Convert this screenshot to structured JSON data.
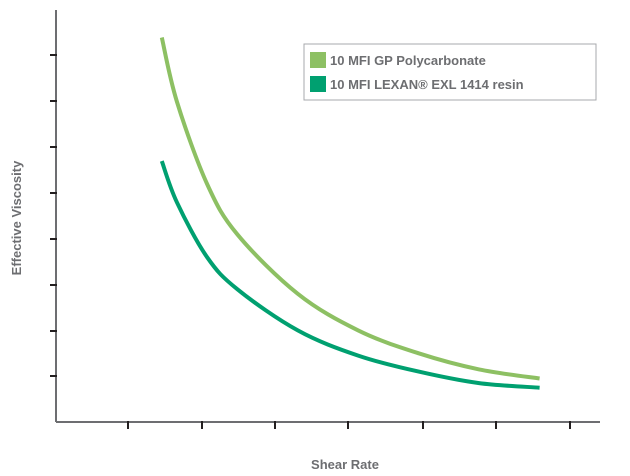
{
  "chart_data": {
    "type": "line",
    "title": "",
    "xlabel": "Shear Rate",
    "ylabel": "Effective Viscosity",
    "x_tick_labels": [],
    "y_tick_labels": [],
    "grid": false,
    "legend_position": "top-right",
    "series": [
      {
        "name": "10 MFI GP Polycarbonate",
        "color": "#8dc063",
        "x": [
          1.75,
          2.0,
          2.5,
          3.0,
          4.0,
          5.0,
          6.0,
          7.0,
          8.0
        ],
        "y": [
          8.4,
          7.0,
          5.2,
          4.1,
          2.8,
          2.0,
          1.5,
          1.15,
          0.95
        ]
      },
      {
        "name": "10 MFI LEXAN® EXL 1414 resin",
        "color": "#00a070",
        "x": [
          1.75,
          2.0,
          2.5,
          3.0,
          4.0,
          5.0,
          6.0,
          7.0,
          8.0
        ],
        "y": [
          5.7,
          4.8,
          3.6,
          2.9,
          2.0,
          1.45,
          1.1,
          0.85,
          0.75
        ]
      }
    ],
    "xlim": [
      0,
      9
    ],
    "ylim": [
      0,
      9
    ]
  }
}
